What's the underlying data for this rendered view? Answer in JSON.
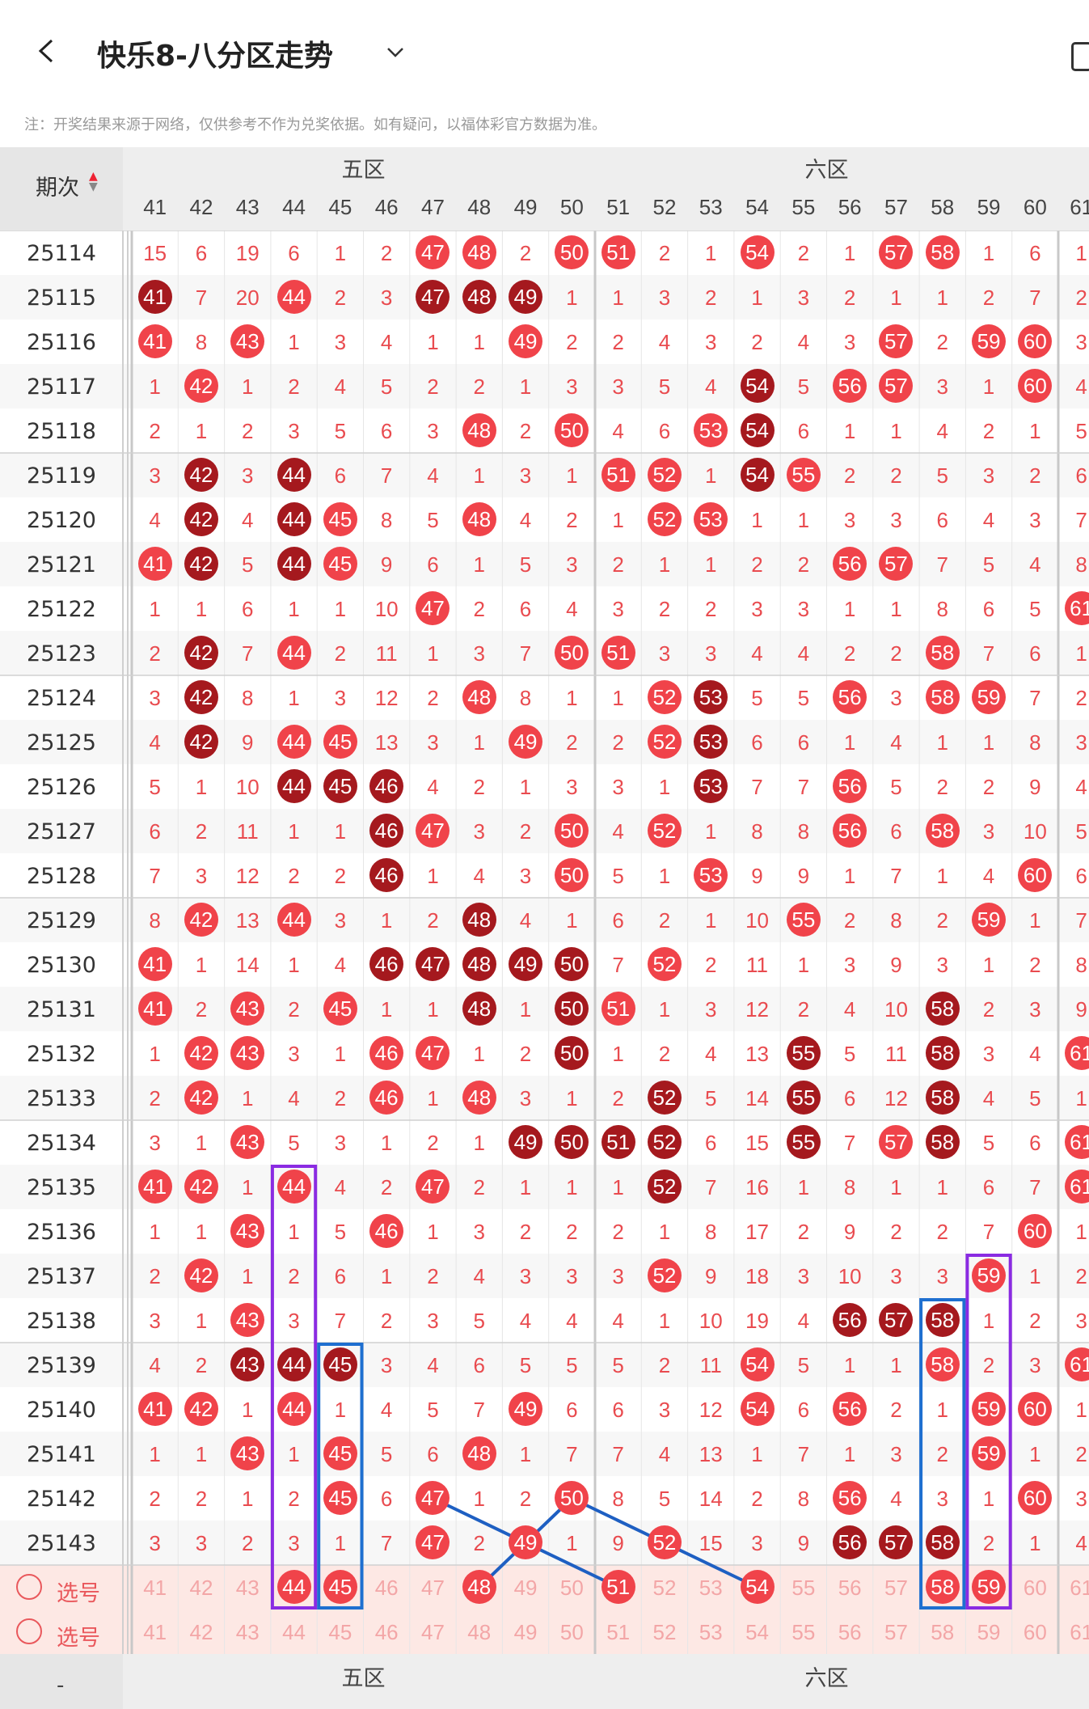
{
  "app": {
    "title": "快乐8-八分区走势",
    "note": "注：开奖结果来源于网络，仅供参考不作为兑奖依据。如有疑问，以福体彩官方数据为准。"
  },
  "header": {
    "period_label": "期次",
    "zone_labels": [
      "五区",
      "六区"
    ],
    "columns": [
      41,
      42,
      43,
      44,
      45,
      46,
      47,
      48,
      49,
      50,
      51,
      52,
      53,
      54,
      55,
      56,
      57,
      58,
      59,
      60,
      61
    ]
  },
  "rows": [
    {
      "period": "25114",
      "cells": [
        15,
        6,
        19,
        6,
        1,
        2,
        47,
        48,
        2,
        50,
        51,
        2,
        1,
        54,
        2,
        1,
        57,
        58,
        1,
        6,
        1
      ],
      "hits": [
        47,
        48,
        50,
        51,
        54,
        57,
        58
      ],
      "dark": []
    },
    {
      "period": "25115",
      "cells": [
        41,
        7,
        20,
        44,
        2,
        3,
        47,
        48,
        49,
        1,
        1,
        3,
        2,
        1,
        3,
        2,
        1,
        1,
        2,
        7,
        2
      ],
      "hits": [
        41,
        44,
        47,
        48,
        49
      ],
      "dark": [
        41,
        47,
        48,
        49
      ],
      "shade": true
    },
    {
      "period": "25116",
      "cells": [
        41,
        8,
        43,
        1,
        3,
        4,
        1,
        1,
        49,
        2,
        2,
        4,
        3,
        2,
        4,
        3,
        57,
        2,
        59,
        60,
        3
      ],
      "hits": [
        41,
        43,
        49,
        57,
        59,
        60
      ],
      "dark": []
    },
    {
      "period": "25117",
      "cells": [
        1,
        42,
        1,
        2,
        4,
        5,
        2,
        2,
        1,
        3,
        3,
        5,
        4,
        54,
        5,
        56,
        57,
        3,
        1,
        60,
        4
      ],
      "hits": [
        42,
        54,
        56,
        57,
        60
      ],
      "dark": [
        54
      ]
    },
    {
      "period": "25118",
      "cells": [
        2,
        1,
        2,
        3,
        5,
        6,
        3,
        48,
        2,
        50,
        4,
        6,
        53,
        54,
        6,
        1,
        1,
        4,
        2,
        1,
        5
      ],
      "hits": [
        48,
        50,
        53,
        54
      ],
      "dark": [
        54
      ]
    },
    {
      "period": "25119",
      "cells": [
        3,
        42,
        3,
        44,
        6,
        7,
        4,
        1,
        3,
        1,
        51,
        52,
        1,
        54,
        55,
        2,
        2,
        5,
        3,
        2,
        6
      ],
      "hits": [
        42,
        44,
        51,
        52,
        54,
        55
      ],
      "dark": [
        42,
        44,
        54
      ]
    },
    {
      "period": "25120",
      "cells": [
        4,
        42,
        4,
        44,
        45,
        8,
        5,
        48,
        4,
        2,
        1,
        52,
        53,
        1,
        1,
        3,
        3,
        6,
        4,
        3,
        7
      ],
      "hits": [
        42,
        44,
        45,
        48,
        52,
        53
      ],
      "dark": [
        42,
        44
      ]
    },
    {
      "period": "25121",
      "cells": [
        41,
        42,
        5,
        44,
        45,
        9,
        6,
        1,
        5,
        3,
        2,
        1,
        1,
        2,
        2,
        56,
        57,
        7,
        5,
        4,
        8
      ],
      "hits": [
        41,
        42,
        44,
        45,
        56,
        57
      ],
      "dark": [
        42,
        44
      ]
    },
    {
      "period": "25122",
      "cells": [
        1,
        1,
        6,
        1,
        1,
        10,
        47,
        2,
        6,
        4,
        3,
        2,
        2,
        3,
        3,
        1,
        1,
        8,
        6,
        5,
        61
      ],
      "hits": [
        47,
        61
      ],
      "dark": [],
      "shade6": true
    },
    {
      "period": "25123",
      "cells": [
        2,
        42,
        7,
        44,
        2,
        11,
        1,
        3,
        7,
        50,
        51,
        3,
        3,
        4,
        4,
        2,
        2,
        58,
        7,
        6,
        1
      ],
      "hits": [
        42,
        44,
        50,
        51,
        58
      ],
      "dark": [
        42
      ]
    },
    {
      "period": "25124",
      "cells": [
        3,
        42,
        8,
        1,
        3,
        12,
        2,
        48,
        8,
        1,
        1,
        52,
        53,
        5,
        5,
        56,
        3,
        58,
        59,
        7,
        2
      ],
      "hits": [
        42,
        48,
        52,
        53,
        56,
        58,
        59
      ],
      "dark": [
        42,
        53
      ]
    },
    {
      "period": "25125",
      "cells": [
        4,
        42,
        9,
        44,
        45,
        13,
        3,
        1,
        49,
        2,
        2,
        52,
        53,
        6,
        6,
        1,
        4,
        1,
        1,
        8,
        3
      ],
      "hits": [
        42,
        44,
        45,
        49,
        52,
        53
      ],
      "dark": [
        42,
        53
      ]
    },
    {
      "period": "25126",
      "cells": [
        5,
        1,
        10,
        44,
        45,
        46,
        4,
        2,
        1,
        3,
        3,
        1,
        53,
        7,
        7,
        56,
        5,
        2,
        2,
        9,
        4
      ],
      "hits": [
        44,
        45,
        46,
        53,
        56
      ],
      "dark": [
        44,
        45,
        46,
        53
      ]
    },
    {
      "period": "25127",
      "cells": [
        6,
        2,
        11,
        1,
        1,
        46,
        47,
        3,
        2,
        50,
        4,
        52,
        1,
        8,
        8,
        56,
        6,
        58,
        3,
        10,
        5
      ],
      "hits": [
        46,
        47,
        50,
        52,
        56,
        58
      ],
      "dark": [
        46
      ]
    },
    {
      "period": "25128",
      "cells": [
        7,
        3,
        12,
        2,
        2,
        46,
        1,
        4,
        3,
        50,
        5,
        1,
        53,
        9,
        9,
        1,
        7,
        1,
        4,
        60,
        6
      ],
      "hits": [
        46,
        50,
        53,
        60
      ],
      "dark": [
        46
      ]
    },
    {
      "period": "25129",
      "cells": [
        8,
        42,
        13,
        44,
        3,
        1,
        2,
        48,
        4,
        1,
        6,
        2,
        1,
        10,
        55,
        2,
        8,
        2,
        59,
        1,
        7
      ],
      "hits": [
        42,
        44,
        48,
        55,
        59
      ],
      "dark": [
        48
      ]
    },
    {
      "period": "25130",
      "cells": [
        41,
        1,
        14,
        1,
        4,
        46,
        47,
        48,
        49,
        50,
        7,
        52,
        2,
        11,
        1,
        3,
        9,
        3,
        1,
        2,
        8
      ],
      "hits": [
        41,
        46,
        47,
        48,
        49,
        50,
        52
      ],
      "dark": [
        46,
        47,
        48,
        49,
        50
      ]
    },
    {
      "period": "25131",
      "cells": [
        41,
        2,
        43,
        2,
        45,
        1,
        1,
        48,
        1,
        50,
        51,
        1,
        3,
        12,
        2,
        4,
        10,
        58,
        2,
        3,
        9
      ],
      "hits": [
        41,
        43,
        45,
        48,
        50,
        51,
        58
      ],
      "dark": [
        48,
        50,
        58
      ]
    },
    {
      "period": "25132",
      "cells": [
        1,
        42,
        43,
        3,
        1,
        46,
        47,
        1,
        2,
        50,
        1,
        2,
        4,
        13,
        55,
        5,
        11,
        58,
        3,
        4,
        61
      ],
      "hits": [
        42,
        43,
        46,
        47,
        50,
        55,
        58,
        61
      ],
      "dark": [
        50,
        55,
        58
      ]
    },
    {
      "period": "25133",
      "cells": [
        2,
        42,
        1,
        4,
        2,
        46,
        1,
        48,
        3,
        1,
        2,
        52,
        5,
        14,
        55,
        6,
        12,
        58,
        4,
        5,
        1
      ],
      "hits": [
        42,
        46,
        48,
        52,
        55,
        58
      ],
      "dark": [
        52,
        55,
        58
      ]
    },
    {
      "period": "25134",
      "cells": [
        3,
        1,
        43,
        5,
        3,
        1,
        2,
        1,
        49,
        50,
        51,
        52,
        6,
        15,
        55,
        7,
        57,
        58,
        5,
        6,
        61
      ],
      "hits": [
        43,
        49,
        50,
        51,
        52,
        55,
        57,
        58,
        61
      ],
      "dark": [
        49,
        50,
        51,
        52,
        55,
        58
      ]
    },
    {
      "period": "25135",
      "cells": [
        41,
        42,
        1,
        44,
        4,
        2,
        47,
        2,
        1,
        1,
        1,
        52,
        7,
        16,
        1,
        8,
        1,
        1,
        6,
        7,
        61
      ],
      "hits": [
        41,
        42,
        44,
        47,
        52,
        61
      ],
      "dark": [
        52
      ]
    },
    {
      "period": "25136",
      "cells": [
        1,
        1,
        43,
        1,
        5,
        46,
        1,
        3,
        2,
        2,
        2,
        1,
        8,
        17,
        2,
        9,
        2,
        2,
        7,
        60,
        1
      ],
      "hits": [
        43,
        46,
        60
      ],
      "dark": []
    },
    {
      "period": "25137",
      "cells": [
        2,
        42,
        1,
        2,
        6,
        1,
        2,
        4,
        3,
        3,
        3,
        52,
        9,
        18,
        3,
        10,
        3,
        3,
        59,
        1,
        2
      ],
      "hits": [
        42,
        52,
        59
      ],
      "dark": []
    },
    {
      "period": "25138",
      "cells": [
        3,
        1,
        43,
        3,
        7,
        2,
        3,
        5,
        4,
        4,
        4,
        1,
        10,
        19,
        4,
        56,
        57,
        58,
        1,
        2,
        3
      ],
      "hits": [
        43,
        56,
        57,
        58
      ],
      "dark": [
        56,
        57,
        58
      ]
    },
    {
      "period": "25139",
      "cells": [
        4,
        2,
        43,
        44,
        45,
        3,
        4,
        6,
        5,
        5,
        5,
        2,
        11,
        54,
        5,
        1,
        1,
        58,
        2,
        3,
        61
      ],
      "hits": [
        43,
        44,
        45,
        54,
        58,
        61
      ],
      "dark": [
        43,
        44,
        45
      ]
    },
    {
      "period": "25140",
      "cells": [
        41,
        42,
        1,
        44,
        1,
        4,
        5,
        7,
        49,
        6,
        6,
        3,
        12,
        54,
        6,
        56,
        2,
        1,
        59,
        60,
        1
      ],
      "hits": [
        41,
        42,
        44,
        49,
        54,
        56,
        59,
        60
      ],
      "dark": []
    },
    {
      "period": "25141",
      "cells": [
        1,
        1,
        43,
        1,
        45,
        5,
        6,
        48,
        1,
        7,
        7,
        4,
        13,
        1,
        7,
        1,
        3,
        2,
        59,
        1,
        2
      ],
      "hits": [
        43,
        45,
        48,
        59
      ],
      "dark": []
    },
    {
      "period": "25142",
      "cells": [
        2,
        2,
        1,
        2,
        45,
        6,
        47,
        1,
        2,
        50,
        8,
        5,
        14,
        2,
        8,
        56,
        4,
        3,
        1,
        60,
        3
      ],
      "hits": [
        45,
        47,
        50,
        56,
        60
      ],
      "dark": []
    },
    {
      "period": "25143",
      "cells": [
        3,
        3,
        2,
        3,
        1,
        7,
        47,
        2,
        49,
        1,
        9,
        52,
        15,
        3,
        9,
        56,
        57,
        58,
        2,
        1,
        4
      ],
      "hits": [
        47,
        49,
        52,
        56,
        57,
        58
      ],
      "dark": [
        56,
        57,
        58
      ]
    }
  ],
  "select_rows": [
    {
      "label": "选号",
      "hits": [
        44,
        45,
        48,
        51,
        54,
        58,
        59
      ]
    },
    {
      "label": "选号",
      "hits": []
    }
  ],
  "colors": {
    "hit": "#f0434a",
    "dark": "#a5191e",
    "digit": "#e94b4f",
    "shade": "#f3e6e6",
    "selshade": "#fde8e4"
  }
}
